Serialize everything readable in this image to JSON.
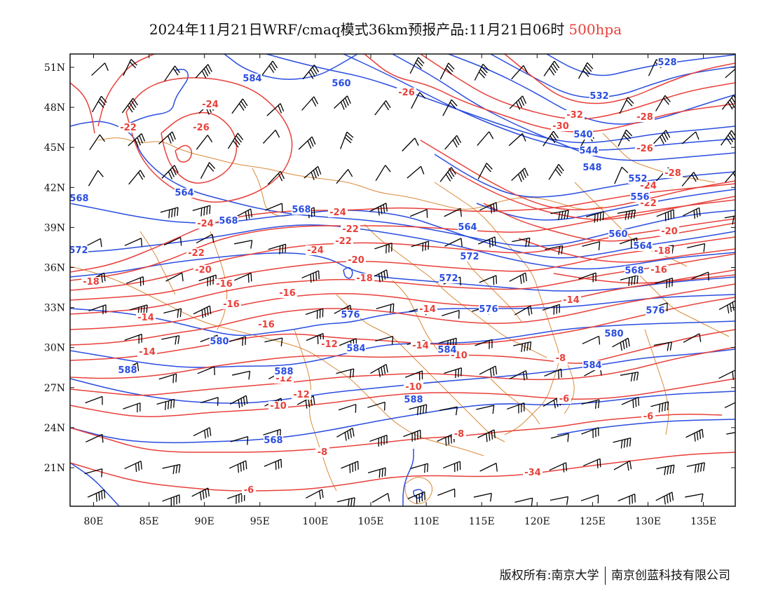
{
  "title": {
    "main": "2024年11月21日WRF/cmaq模式36km预报产品:11月21日06时",
    "level": "500hpa",
    "level_color": "#e8403a"
  },
  "axes": {
    "x_ticks": [
      "80E",
      "85E",
      "90E",
      "95E",
      "100E",
      "105E",
      "110E",
      "115E",
      "120E",
      "125E",
      "130E",
      "135E"
    ],
    "y_ticks": [
      "51N",
      "48N",
      "45N",
      "42N",
      "39N",
      "36N",
      "33N",
      "30N",
      "27N",
      "24N",
      "21N"
    ]
  },
  "colors": {
    "temperature": "#e8403a",
    "height": "#2a4de0",
    "boundaries": "#d98a3a",
    "wind": "#000000"
  },
  "temperature_labels": [
    "-24",
    "-26",
    "-22",
    "-26",
    "-24",
    "-24",
    "-22",
    "-22",
    "-24",
    "-22",
    "-20",
    "-20",
    "-18",
    "-16",
    "-18",
    "-16",
    "-14",
    "-16",
    "-16",
    "-14",
    "-14",
    "-12",
    "-14",
    "-12",
    "-10",
    "-10",
    "-12",
    "-10",
    "-8",
    "-8",
    "-8",
    "-6",
    "-6",
    "-6",
    "-34",
    "-32",
    "-30",
    "-28",
    "-26",
    "-28",
    "-24",
    "-22",
    "-20",
    "-18",
    "-16",
    "-14"
  ],
  "height_labels": [
    "584",
    "560",
    "528",
    "532",
    "540",
    "544",
    "548",
    "552",
    "556",
    "564",
    "568",
    "568",
    "568",
    "564",
    "560",
    "564",
    "568",
    "572",
    "572",
    "572",
    "576",
    "576",
    "576",
    "580",
    "580",
    "584",
    "584",
    "588",
    "584",
    "588",
    "588",
    "568"
  ],
  "footer": {
    "left": "版权所有:南京大学",
    "right": "南京创蓝科技有限公司"
  }
}
